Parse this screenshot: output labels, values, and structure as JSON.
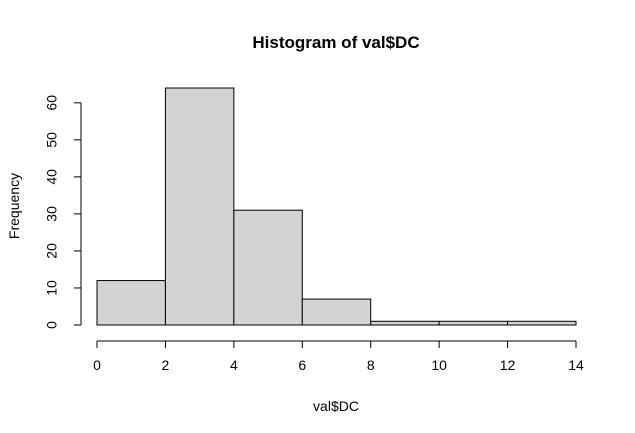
{
  "chart_data": {
    "type": "bar",
    "title": "Histogram of val$DC",
    "xlabel": "val$DC",
    "ylabel": "Frequency",
    "bins": [
      {
        "start": 0,
        "end": 2,
        "count": 12
      },
      {
        "start": 2,
        "end": 4,
        "count": 64
      },
      {
        "start": 4,
        "end": 6,
        "count": 31
      },
      {
        "start": 6,
        "end": 8,
        "count": 7
      },
      {
        "start": 8,
        "end": 10,
        "count": 1
      },
      {
        "start": 10,
        "end": 12,
        "count": 1
      },
      {
        "start": 12,
        "end": 14,
        "count": 1
      }
    ],
    "x_ticks": [
      0,
      2,
      4,
      6,
      8,
      10,
      12,
      14
    ],
    "y_ticks": [
      0,
      10,
      20,
      30,
      40,
      50,
      60
    ],
    "xlim": [
      0,
      14
    ],
    "ylim": [
      0,
      64
    ],
    "grid": false,
    "colors": {
      "bar_fill": "#d3d3d3",
      "bar_stroke": "#000000"
    }
  }
}
